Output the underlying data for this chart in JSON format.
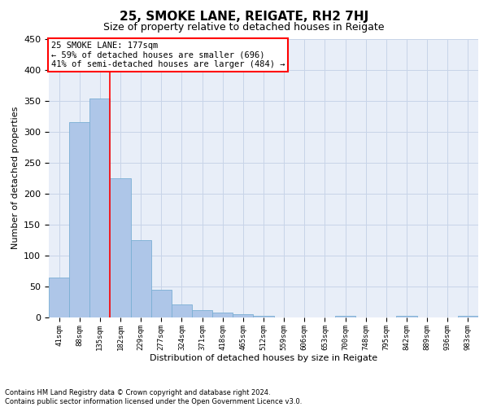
{
  "title": "25, SMOKE LANE, REIGATE, RH2 7HJ",
  "subtitle": "Size of property relative to detached houses in Reigate",
  "xlabel": "Distribution of detached houses by size in Reigate",
  "ylabel": "Number of detached properties",
  "footer_line1": "Contains HM Land Registry data © Crown copyright and database right 2024.",
  "footer_line2": "Contains public sector information licensed under the Open Government Licence v3.0.",
  "bar_labels": [
    "41sqm",
    "88sqm",
    "135sqm",
    "182sqm",
    "229sqm",
    "277sqm",
    "324sqm",
    "371sqm",
    "418sqm",
    "465sqm",
    "512sqm",
    "559sqm",
    "606sqm",
    "653sqm",
    "700sqm",
    "748sqm",
    "795sqm",
    "842sqm",
    "889sqm",
    "936sqm",
    "983sqm"
  ],
  "bar_values": [
    65,
    315,
    353,
    225,
    125,
    45,
    21,
    12,
    8,
    5,
    2,
    0,
    0,
    0,
    3,
    0,
    0,
    2,
    0,
    0,
    2
  ],
  "bar_color": "#aec6e8",
  "bar_edge_color": "#7aafd4",
  "property_line_x": 2.5,
  "property_label": "25 SMOKE LANE: 177sqm",
  "annotation_line1": "← 59% of detached houses are smaller (696)",
  "annotation_line2": "41% of semi-detached houses are larger (484) →",
  "annotation_box_color": "white",
  "annotation_box_edge_color": "red",
  "property_line_color": "red",
  "ylim": [
    0,
    450
  ],
  "yticks": [
    0,
    50,
    100,
    150,
    200,
    250,
    300,
    350,
    400,
    450
  ],
  "grid_color": "#c8d4e8",
  "bg_color": "#e8eef8",
  "title_fontsize": 11,
  "subtitle_fontsize": 9,
  "footer_fontsize": 6,
  "ylabel_fontsize": 8,
  "xlabel_fontsize": 8,
  "annotation_fontsize": 7.5,
  "ytick_fontsize": 8,
  "xtick_fontsize": 6.5
}
